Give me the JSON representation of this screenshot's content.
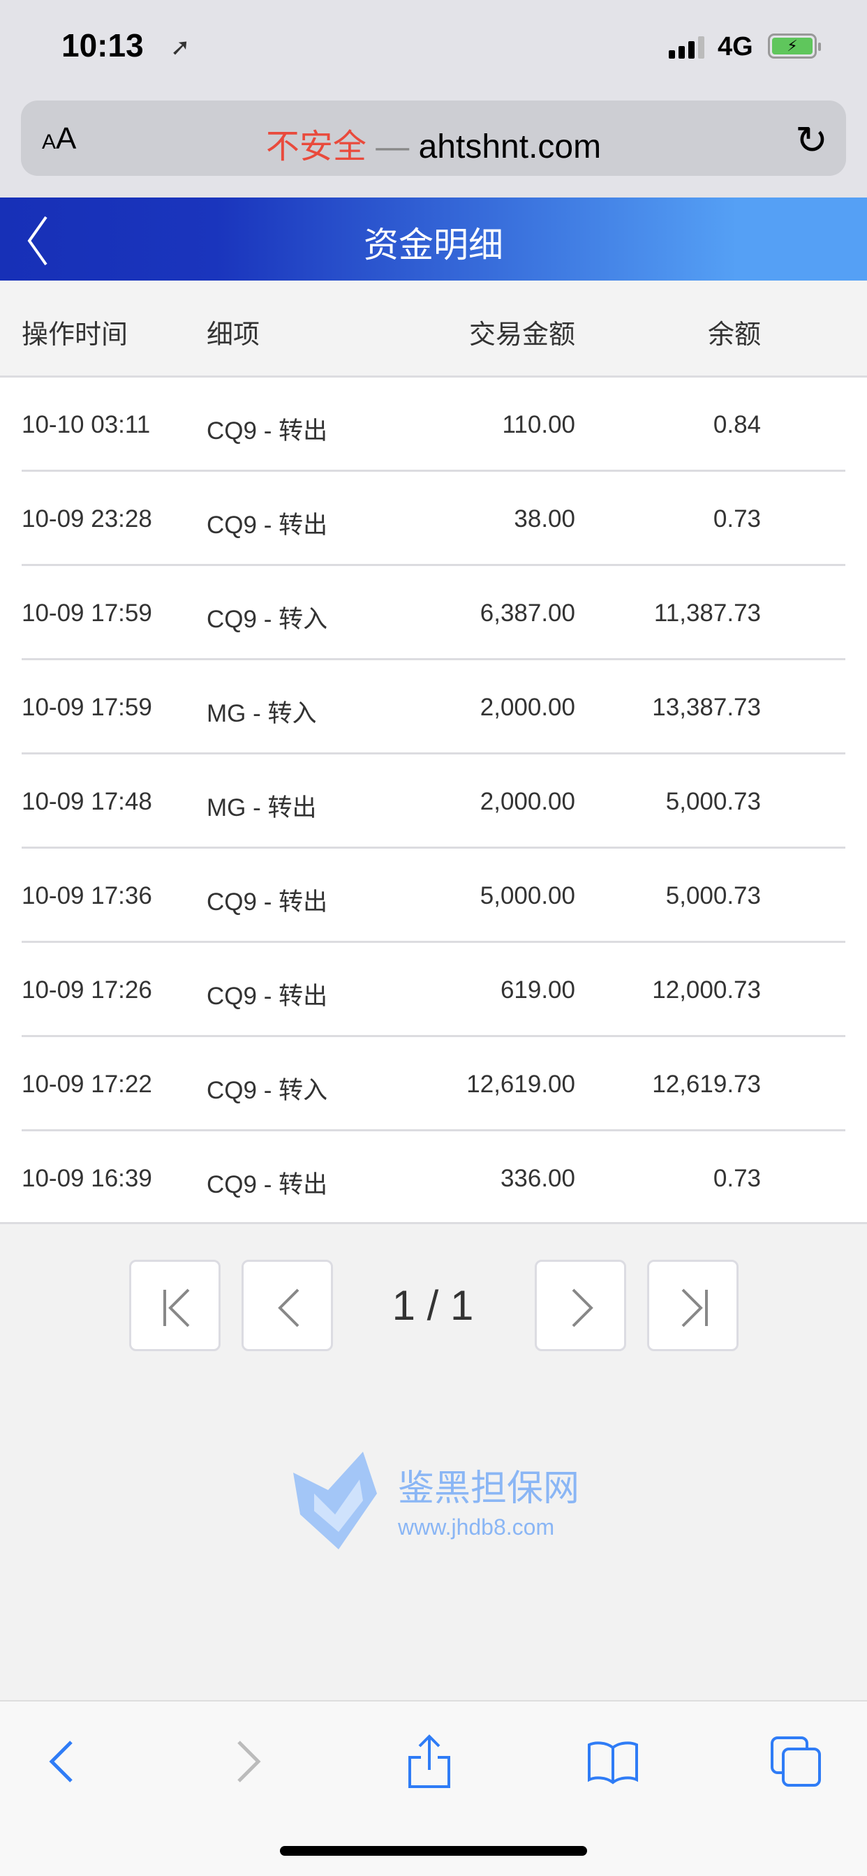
{
  "status_bar": {
    "time": "10:13",
    "network": "4G",
    "location_icon": "location-arrow-icon",
    "battery_state": "charging"
  },
  "browser": {
    "text_size_label_small": "A",
    "text_size_label_large": "A",
    "insecure_label": "不安全",
    "separator": "—",
    "domain": "ahtshnt.com"
  },
  "header": {
    "title": "资金明细"
  },
  "table": {
    "columns": [
      "操作时间",
      "细项",
      "交易金额",
      "余额"
    ],
    "rows": [
      {
        "time": "10-10 03:11",
        "item": "CQ9 - 转出",
        "amount": "110.00",
        "balance": "0.84"
      },
      {
        "time": "10-09 23:28",
        "item": "CQ9 - 转出",
        "amount": "38.00",
        "balance": "0.73"
      },
      {
        "time": "10-09 17:59",
        "item": "CQ9 - 转入",
        "amount": "6,387.00",
        "balance": "11,387.73"
      },
      {
        "time": "10-09 17:59",
        "item": "MG - 转入",
        "amount": "2,000.00",
        "balance": "13,387.73"
      },
      {
        "time": "10-09 17:48",
        "item": "MG - 转出",
        "amount": "2,000.00",
        "balance": "5,000.73"
      },
      {
        "time": "10-09 17:36",
        "item": "CQ9 - 转出",
        "amount": "5,000.00",
        "balance": "5,000.73"
      },
      {
        "time": "10-09 17:26",
        "item": "CQ9 - 转出",
        "amount": "619.00",
        "balance": "12,000.73"
      },
      {
        "time": "10-09 17:22",
        "item": "CQ9 - 转入",
        "amount": "12,619.00",
        "balance": "12,619.73"
      },
      {
        "time": "10-09 16:39",
        "item": "CQ9 - 转出",
        "amount": "336.00",
        "balance": "0.73"
      }
    ]
  },
  "pagination": {
    "current": "1",
    "total": "1",
    "label": "1 / 1"
  },
  "watermark": {
    "name": "鉴黑担保网",
    "url": "www.jhdb8.com"
  },
  "colors": {
    "header_start": "#1730b7",
    "header_end": "#55a0f5",
    "insecure": "#e94a3c",
    "toolbar_icon": "#2f7cf6"
  }
}
